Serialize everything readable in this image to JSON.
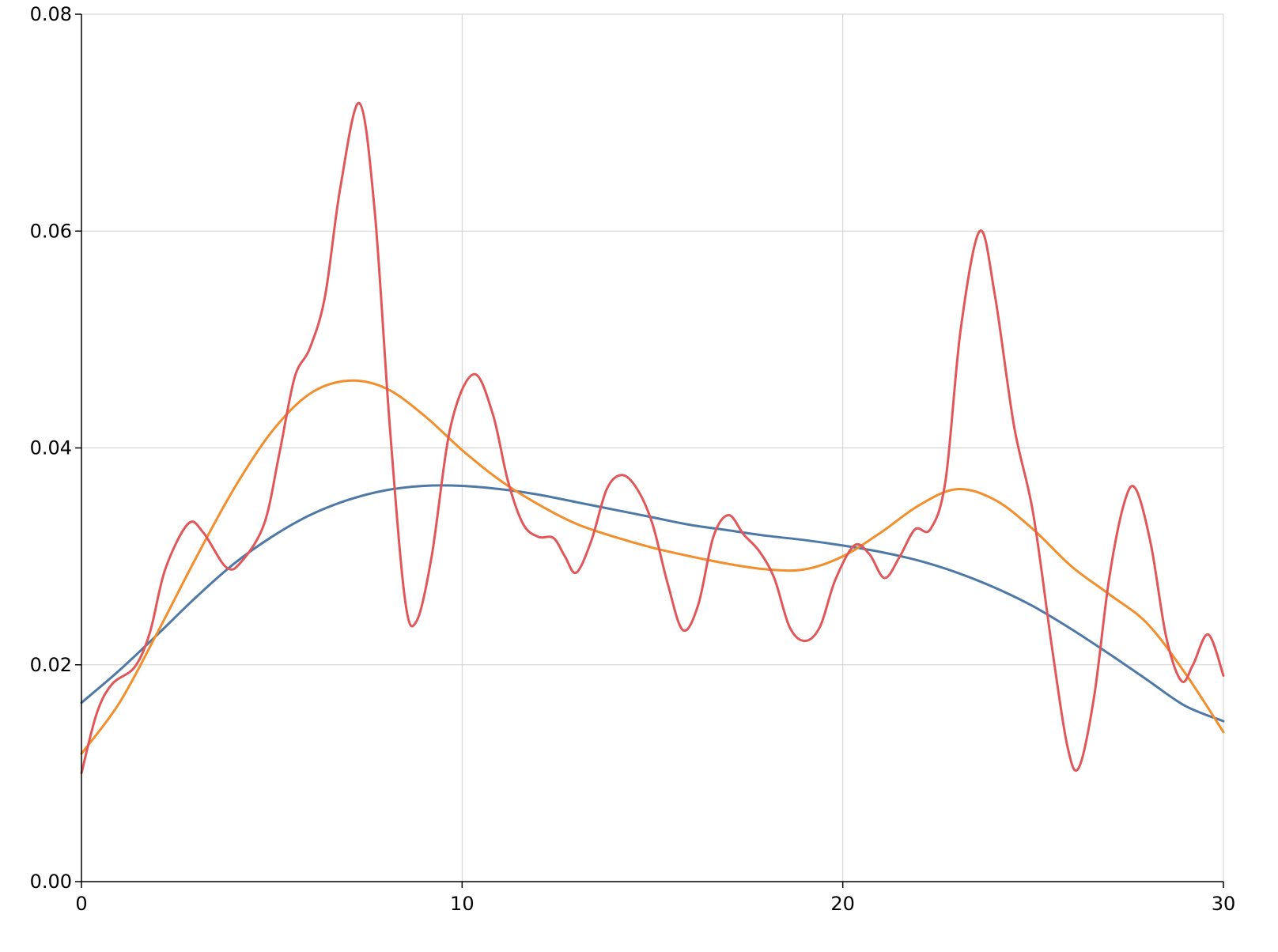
{
  "chart_data": {
    "type": "line",
    "title": "",
    "xlabel": "",
    "ylabel": "",
    "xlim": [
      0,
      30
    ],
    "ylim": [
      0,
      0.08
    ],
    "x_ticks": [
      0,
      10,
      20,
      30
    ],
    "y_ticks": [
      0.0,
      0.02,
      0.04,
      0.06,
      0.08
    ],
    "x_tick_labels": [
      "0",
      "10",
      "20",
      "30"
    ],
    "y_tick_labels": [
      "0.00",
      "0.02",
      "0.04",
      "0.06",
      "0.08"
    ],
    "grid": true,
    "legend": "none",
    "series": [
      {
        "color": "#4e79a7",
        "points": [
          [
            0,
            0.0165
          ],
          [
            1,
            0.0195
          ],
          [
            2,
            0.0228
          ],
          [
            3,
            0.0262
          ],
          [
            4,
            0.0293
          ],
          [
            5,
            0.0318
          ],
          [
            6,
            0.0338
          ],
          [
            7,
            0.0352
          ],
          [
            8,
            0.0361
          ],
          [
            9,
            0.0365
          ],
          [
            10,
            0.0365
          ],
          [
            11,
            0.0362
          ],
          [
            12,
            0.0357
          ],
          [
            13,
            0.035
          ],
          [
            14,
            0.0343
          ],
          [
            15,
            0.0336
          ],
          [
            16,
            0.0329
          ],
          [
            17,
            0.0324
          ],
          [
            18,
            0.0319
          ],
          [
            19,
            0.0315
          ],
          [
            20,
            0.031
          ],
          [
            21,
            0.0304
          ],
          [
            22,
            0.0296
          ],
          [
            23,
            0.0285
          ],
          [
            24,
            0.0271
          ],
          [
            25,
            0.0254
          ],
          [
            26,
            0.0233
          ],
          [
            27,
            0.021
          ],
          [
            28,
            0.0186
          ],
          [
            29,
            0.0162
          ],
          [
            30,
            0.0148
          ]
        ]
      },
      {
        "color": "#f28e2b",
        "points": [
          [
            0,
            0.0118
          ],
          [
            1,
            0.0165
          ],
          [
            2,
            0.023
          ],
          [
            3,
            0.0298
          ],
          [
            4,
            0.0362
          ],
          [
            5,
            0.0415
          ],
          [
            6,
            0.045
          ],
          [
            7,
            0.0462
          ],
          [
            8,
            0.0455
          ],
          [
            9,
            0.043
          ],
          [
            10,
            0.0398
          ],
          [
            11,
            0.037
          ],
          [
            12,
            0.0348
          ],
          [
            13,
            0.033
          ],
          [
            14,
            0.0318
          ],
          [
            15,
            0.0308
          ],
          [
            16,
            0.03
          ],
          [
            17,
            0.0293
          ],
          [
            18,
            0.0288
          ],
          [
            19,
            0.0288
          ],
          [
            20,
            0.03
          ],
          [
            21,
            0.0322
          ],
          [
            22,
            0.0347
          ],
          [
            23,
            0.0362
          ],
          [
            24,
            0.0352
          ],
          [
            25,
            0.0325
          ],
          [
            26,
            0.0291
          ],
          [
            27,
            0.0265
          ],
          [
            28,
            0.0238
          ],
          [
            29,
            0.0192
          ],
          [
            30,
            0.0138
          ]
        ]
      },
      {
        "color": "#e15759",
        "points": [
          [
            0,
            0.01
          ],
          [
            0.4,
            0.0155
          ],
          [
            0.8,
            0.0182
          ],
          [
            1.4,
            0.0198
          ],
          [
            1.8,
            0.023
          ],
          [
            2.2,
            0.0288
          ],
          [
            2.8,
            0.033
          ],
          [
            3.2,
            0.0322
          ],
          [
            3.8,
            0.029
          ],
          [
            4.2,
            0.0295
          ],
          [
            4.8,
            0.033
          ],
          [
            5.2,
            0.0395
          ],
          [
            5.6,
            0.0465
          ],
          [
            6.0,
            0.0492
          ],
          [
            6.4,
            0.054
          ],
          [
            6.8,
            0.064
          ],
          [
            7.3,
            0.0718
          ],
          [
            7.7,
            0.062
          ],
          [
            8.1,
            0.042
          ],
          [
            8.5,
            0.026
          ],
          [
            8.8,
            0.024
          ],
          [
            9.2,
            0.03
          ],
          [
            9.7,
            0.042
          ],
          [
            10.3,
            0.0468
          ],
          [
            10.8,
            0.0432
          ],
          [
            11.2,
            0.037
          ],
          [
            11.6,
            0.033
          ],
          [
            12.0,
            0.0318
          ],
          [
            12.4,
            0.0317
          ],
          [
            12.7,
            0.03
          ],
          [
            13.0,
            0.0285
          ],
          [
            13.4,
            0.0315
          ],
          [
            13.8,
            0.0362
          ],
          [
            14.2,
            0.0375
          ],
          [
            14.6,
            0.0362
          ],
          [
            15.0,
            0.033
          ],
          [
            15.4,
            0.0275
          ],
          [
            15.8,
            0.0232
          ],
          [
            16.2,
            0.0255
          ],
          [
            16.6,
            0.0318
          ],
          [
            17.0,
            0.0338
          ],
          [
            17.4,
            0.032
          ],
          [
            17.8,
            0.0305
          ],
          [
            18.2,
            0.028
          ],
          [
            18.6,
            0.0235
          ],
          [
            19.0,
            0.0222
          ],
          [
            19.4,
            0.0235
          ],
          [
            19.8,
            0.0278
          ],
          [
            20.3,
            0.031
          ],
          [
            20.7,
            0.0302
          ],
          [
            21.1,
            0.028
          ],
          [
            21.5,
            0.03
          ],
          [
            21.9,
            0.0325
          ],
          [
            22.3,
            0.0325
          ],
          [
            22.7,
            0.037
          ],
          [
            23.1,
            0.051
          ],
          [
            23.6,
            0.06
          ],
          [
            24.0,
            0.054
          ],
          [
            24.5,
            0.042
          ],
          [
            25.0,
            0.034
          ],
          [
            25.5,
            0.0215
          ],
          [
            25.9,
            0.0125
          ],
          [
            26.2,
            0.0105
          ],
          [
            26.6,
            0.017
          ],
          [
            27.0,
            0.028
          ],
          [
            27.4,
            0.035
          ],
          [
            27.7,
            0.0362
          ],
          [
            28.1,
            0.031
          ],
          [
            28.5,
            0.0225
          ],
          [
            28.9,
            0.0185
          ],
          [
            29.2,
            0.02
          ],
          [
            29.6,
            0.0228
          ],
          [
            30.0,
            0.019
          ]
        ]
      }
    ]
  }
}
